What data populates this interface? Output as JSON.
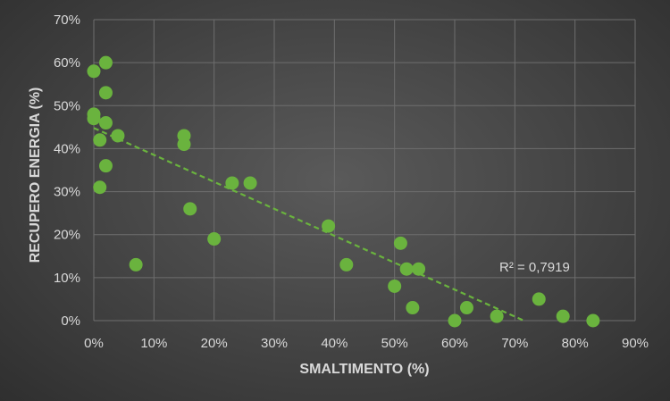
{
  "chart_data": {
    "type": "scatter",
    "xlabel": "SMALTIMENTO (%)",
    "ylabel": "RECUPERO ENERGIA (%)",
    "xlim": [
      0,
      90
    ],
    "ylim": [
      0,
      70
    ],
    "x_ticks": [
      "0%",
      "10%",
      "20%",
      "30%",
      "40%",
      "50%",
      "60%",
      "70%",
      "80%",
      "90%"
    ],
    "y_ticks": [
      "0%",
      "10%",
      "20%",
      "30%",
      "40%",
      "50%",
      "60%",
      "70%"
    ],
    "grid": true,
    "marker_color": "#6ab33e",
    "trendline": {
      "type": "linear",
      "color": "#6ab33e",
      "style": "dashed",
      "start": [
        0,
        44.8
      ],
      "end": [
        71.5,
        0
      ],
      "r2_label": "R² = 0,7919"
    },
    "points": [
      {
        "x": 0,
        "y": 58
      },
      {
        "x": 2,
        "y": 60
      },
      {
        "x": 2,
        "y": 53
      },
      {
        "x": 0,
        "y": 48
      },
      {
        "x": 0,
        "y": 47
      },
      {
        "x": 2,
        "y": 46
      },
      {
        "x": 4,
        "y": 43
      },
      {
        "x": 1,
        "y": 42
      },
      {
        "x": 2,
        "y": 36
      },
      {
        "x": 1,
        "y": 31
      },
      {
        "x": 7,
        "y": 13
      },
      {
        "x": 15,
        "y": 43
      },
      {
        "x": 15,
        "y": 41
      },
      {
        "x": 16,
        "y": 26
      },
      {
        "x": 20,
        "y": 19
      },
      {
        "x": 23,
        "y": 32
      },
      {
        "x": 26,
        "y": 32
      },
      {
        "x": 39,
        "y": 22
      },
      {
        "x": 42,
        "y": 13
      },
      {
        "x": 50,
        "y": 8
      },
      {
        "x": 51,
        "y": 18
      },
      {
        "x": 52,
        "y": 12
      },
      {
        "x": 53,
        "y": 3
      },
      {
        "x": 54,
        "y": 12
      },
      {
        "x": 60,
        "y": 0
      },
      {
        "x": 62,
        "y": 3
      },
      {
        "x": 67,
        "y": 1
      },
      {
        "x": 74,
        "y": 5
      },
      {
        "x": 78,
        "y": 1
      },
      {
        "x": 83,
        "y": 0
      }
    ]
  }
}
